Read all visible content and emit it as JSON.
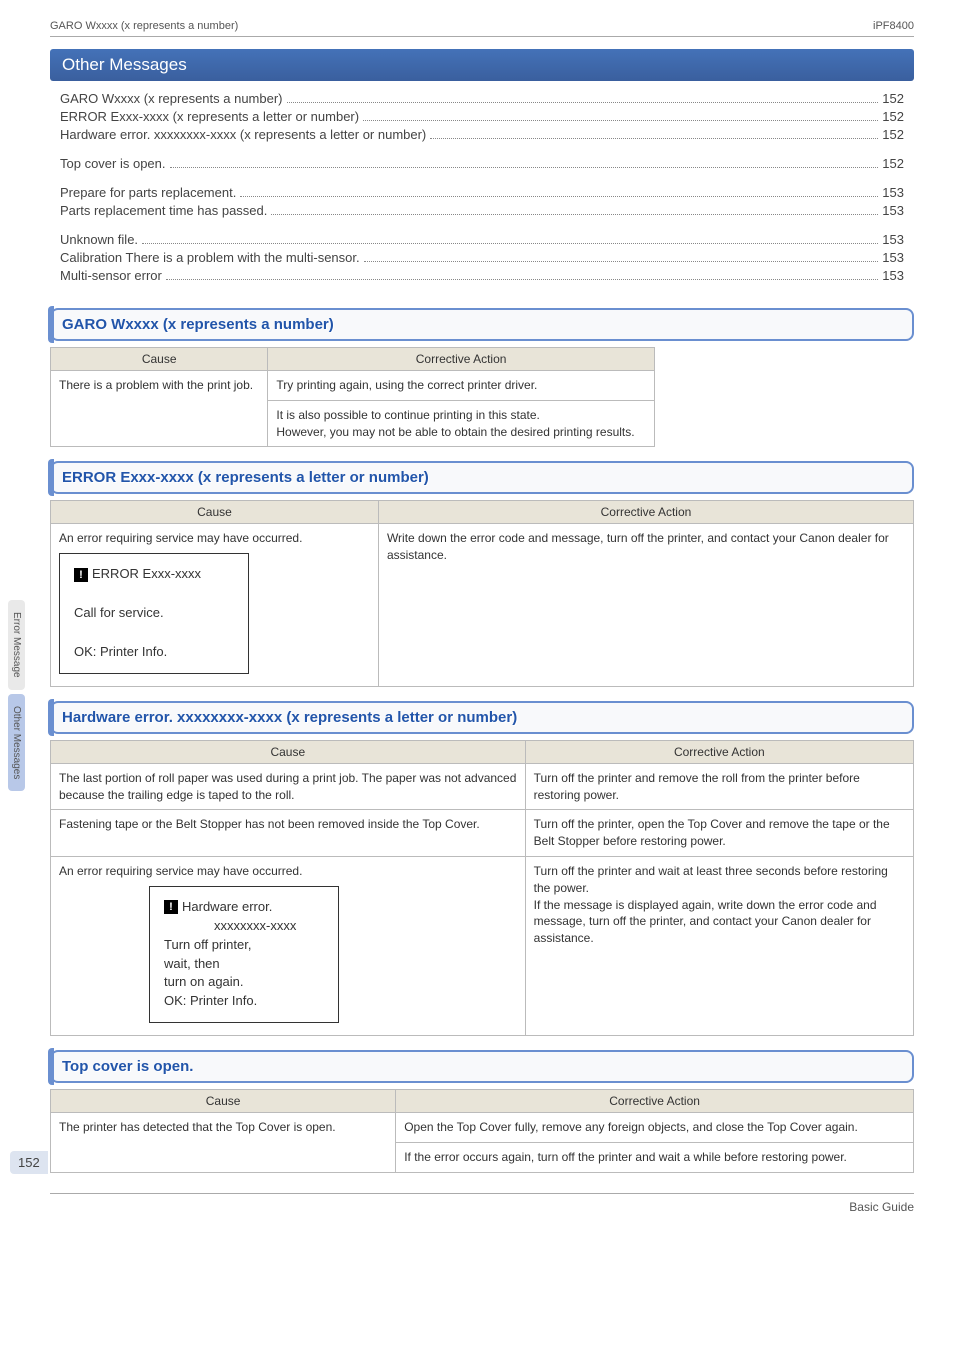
{
  "header": {
    "left": "GARO Wxxxx (x represents a number)",
    "right": "iPF8400"
  },
  "section_title": "Other Messages",
  "toc": [
    {
      "label": "GARO Wxxxx (x represents a number)",
      "page": "152"
    },
    {
      "label": "ERROR Exxx-xxxx (x represents a letter or number)",
      "page": "152"
    },
    {
      "label": "Hardware error. xxxxxxxx-xxxx (x represents a letter or number)",
      "page": "152"
    },
    {
      "spacer": true
    },
    {
      "label": "Top cover is open.",
      "page": "152"
    },
    {
      "spacer": true
    },
    {
      "label": "Prepare for parts replacement.",
      "page": "153"
    },
    {
      "label": "Parts replacement time has passed.",
      "page": "153"
    },
    {
      "spacer": true
    },
    {
      "label": "Unknown file.",
      "page": "153"
    },
    {
      "label": "Calibration There is a problem with the multi-sensor.",
      "page": "153"
    },
    {
      "label": "Multi-sensor error",
      "page": "153"
    }
  ],
  "tables": {
    "garo": {
      "heading": "GARO Wxxxx (x represents a number)",
      "cols": [
        "Cause",
        "Corrective Action"
      ],
      "widths": [
        "33%",
        "67%"
      ],
      "cause": "There is a problem with the print job.",
      "actions": [
        "Try printing again, using the correct printer driver.",
        "It is also possible to continue printing in this state.\nHowever, you may not be able to obtain the desired printing results."
      ]
    },
    "error": {
      "heading": "ERROR Exxx-xxxx (x represents a letter or number)",
      "cols": [
        "Cause",
        "Corrective Action"
      ],
      "widths": [
        "38%",
        "62%"
      ],
      "cause_text": "An error requiring service may have occurred.",
      "lcd": {
        "line1": "ERROR Exxx-xxxx",
        "line2": "Call for service.",
        "line3": "OK: Printer Info."
      },
      "action": "Write down the error code and message, turn off the printer, and contact your Canon dealer for assistance."
    },
    "hardware": {
      "heading": "Hardware error. xxxxxxxx-xxxx (x represents a letter or number)",
      "cols": [
        "Cause",
        "Corrective Action"
      ],
      "widths": [
        "55%",
        "45%"
      ],
      "rows_simple": [
        {
          "cause": "The last portion of roll paper was used during a print job. The paper was not advanced because the trailing edge is taped to the roll.",
          "action": "Turn off the printer and remove the roll from the printer before restoring power."
        },
        {
          "cause": "Fastening tape or the Belt Stopper has not been removed inside the Top Cover.",
          "action": "Turn off the printer, open the Top Cover and remove the tape or the Belt Stopper before restoring power."
        }
      ],
      "row_lcd": {
        "cause_text": "An error requiring service may have occurred.",
        "lcd": {
          "line1": "Hardware error.",
          "line2": "xxxxxxxx-xxxx",
          "line3": "Turn off printer,",
          "line4": "wait, then",
          "line5": "turn on again.",
          "line6": "OK: Printer Info."
        },
        "action": "Turn off the printer and wait at least three seconds before restoring the power.\nIf the message is displayed again, write down the error code and message, turn off the printer, and contact your Canon dealer for assistance."
      }
    },
    "topcover": {
      "heading": "Top cover is open.",
      "cols": [
        "Cause",
        "Corrective Action"
      ],
      "widths": [
        "40%",
        "60%"
      ],
      "cause": "The printer has detected that the Top Cover is open.",
      "actions": [
        "Open the Top Cover fully, remove any foreign objects, and close the Top Cover again.",
        "If the error occurs again, turn off the printer and wait a while before restoring power."
      ]
    }
  },
  "side_tabs": [
    {
      "label": "Error Message",
      "state": "inactive"
    },
    {
      "label": "Other Messages",
      "state": "active"
    }
  ],
  "page_number": "152",
  "footer": "Basic Guide"
}
